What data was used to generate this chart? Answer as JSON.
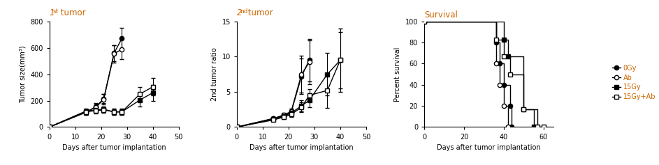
{
  "title1_num": "1",
  "title1_sup": "st",
  "title1_rest": " tumor",
  "title2_num": "2",
  "title2_sup": "nd",
  "title2_rest": " tumor",
  "title3": "Survival",
  "xlabel": "Days after tumor implantation",
  "ylabel1": "Tumor size(mm³)",
  "ylabel2": "2nd tumor ratio",
  "ylabel3": "Percent survival",
  "title_color": "#cc6600",
  "label_color": "#000000",
  "legend_label_color": "#cc6600",
  "p1": {
    "days": [
      0,
      14,
      18,
      21,
      25,
      28,
      35,
      40
    ],
    "gy0": [
      0,
      110,
      155,
      215,
      560,
      670,
      null,
      null
    ],
    "gy0_err": [
      0,
      20,
      25,
      35,
      60,
      80,
      null,
      null
    ],
    "ab": [
      0,
      115,
      150,
      210,
      555,
      590,
      null,
      null
    ],
    "ab_err": [
      0,
      22,
      28,
      38,
      65,
      75,
      null,
      null
    ],
    "gy15": [
      0,
      120,
      130,
      135,
      115,
      115,
      205,
      260
    ],
    "gy15_err": [
      0,
      20,
      20,
      20,
      25,
      25,
      50,
      60
    ],
    "gy15ab": [
      0,
      115,
      125,
      130,
      115,
      115,
      250,
      305
    ],
    "gy15ab_err": [
      0,
      18,
      22,
      22,
      22,
      22,
      55,
      65
    ]
  },
  "p2": {
    "days": [
      0,
      14,
      18,
      21,
      25,
      28,
      35,
      40
    ],
    "gy0": [
      0,
      1.2,
      1.6,
      2.1,
      7.2,
      9.5,
      null,
      null
    ],
    "gy0_err": [
      0,
      0.2,
      0.3,
      0.4,
      2.5,
      3.0,
      null,
      null
    ],
    "ab": [
      0,
      1.2,
      1.7,
      2.2,
      7.5,
      9.2,
      null,
      null
    ],
    "ab_err": [
      0,
      0.25,
      0.35,
      0.45,
      2.6,
      3.1,
      null,
      null
    ],
    "gy15": [
      0,
      1.1,
      1.5,
      2.0,
      3.0,
      3.8,
      7.5,
      9.5
    ],
    "gy15_err": [
      0,
      0.2,
      0.3,
      0.4,
      0.8,
      1.0,
      3.0,
      4.0
    ],
    "gy15ab": [
      0,
      1.0,
      1.4,
      1.8,
      2.8,
      4.5,
      5.2,
      9.5
    ],
    "gy15ab_err": [
      0,
      0.2,
      0.25,
      0.35,
      0.7,
      0.9,
      2.5,
      4.5
    ]
  },
  "p3": {
    "gy0_x": [
      0,
      36,
      38,
      40,
      43,
      44
    ],
    "gy0_y": [
      100,
      80,
      60,
      40,
      20,
      0
    ],
    "ab_x": [
      0,
      36,
      38,
      40,
      42
    ],
    "ab_y": [
      100,
      60,
      40,
      20,
      0
    ],
    "gy15_x": [
      0,
      40,
      42,
      50,
      55
    ],
    "gy15_y": [
      100,
      83,
      67,
      17,
      0
    ],
    "gy15ab_x": [
      0,
      36,
      40,
      43,
      50,
      57,
      60
    ],
    "gy15ab_y": [
      100,
      83,
      67,
      50,
      17,
      0,
      0
    ]
  },
  "legend_labels": [
    "0Gy",
    "Ab",
    "15Gy",
    "15Gy+Ab"
  ],
  "bg_color": "#ffffff"
}
